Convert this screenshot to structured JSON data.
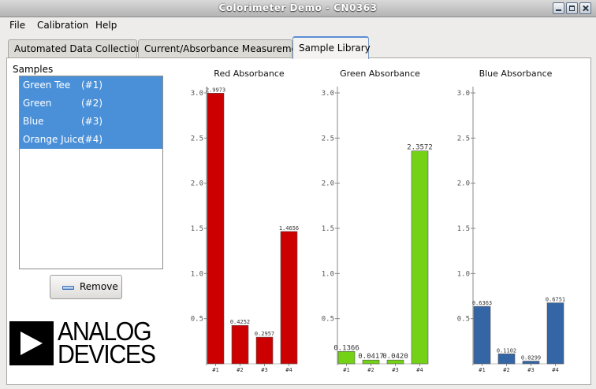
{
  "window": {
    "title": "Colorimeter Demo - CN0363"
  },
  "menu": {
    "items": [
      "File",
      "Calibration",
      "Help"
    ]
  },
  "tabs": [
    {
      "label": "Automated Data Collection",
      "active": false
    },
    {
      "label": "Current/Absorbance Measurement",
      "active": false
    },
    {
      "label": "Sample Library",
      "active": true
    }
  ],
  "samples": {
    "label": "Samples",
    "items": [
      {
        "name": "Green Tee",
        "id": "(#1)"
      },
      {
        "name": "Green",
        "id": "(#2)"
      },
      {
        "name": "Blue",
        "id": "(#3)"
      },
      {
        "name": "Orange Juice",
        "id": "(#4)"
      }
    ],
    "selection_color": "#4a90d9"
  },
  "remove_button": {
    "label": "Remove",
    "icon": "minus-icon"
  },
  "logo": {
    "line1": "ANALOG",
    "line2": "DEVICES"
  },
  "chart_data": [
    {
      "type": "bar",
      "title": "Red Absorbance",
      "categories": [
        "#1",
        "#2",
        "#3",
        "#4"
      ],
      "values": [
        2.9973,
        0.4252,
        0.2957,
        1.4656
      ],
      "value_labels": [
        "2.9973",
        "0.4252",
        "0.2957",
        "1.4656"
      ],
      "ylim": [
        0,
        3.0
      ],
      "yticks": [
        "3.0",
        "2.5",
        "2.0",
        "1.5",
        "1.0",
        "0.5"
      ],
      "color": "#cc0000",
      "label_size": "small"
    },
    {
      "type": "bar",
      "title": "Green Absorbance",
      "categories": [
        "#1",
        "#2",
        "#3",
        "#4"
      ],
      "values": [
        0.1366,
        0.0417,
        0.042,
        2.3572
      ],
      "value_labels": [
        "0.1366",
        "0.0417",
        "0.0420",
        "2.3572"
      ],
      "ylim": [
        0,
        3.0
      ],
      "yticks": [
        "3.0",
        "2.5",
        "2.0",
        "1.5",
        "1.0",
        "0.5"
      ],
      "color": "#73d216",
      "label_size": "big"
    },
    {
      "type": "bar",
      "title": "Blue Absorbance",
      "categories": [
        "#1",
        "#2",
        "#3",
        "#4"
      ],
      "values": [
        0.6363,
        0.1102,
        0.0299,
        0.6751
      ],
      "value_labels": [
        "0.6363",
        "0.1102",
        "0.0299",
        "0.6751"
      ],
      "ylim": [
        0,
        3.0
      ],
      "yticks": [
        "3.0",
        "2.5",
        "2.0",
        "1.5",
        "1.0",
        "0.5"
      ],
      "color": "#3465a4",
      "label_size": "small"
    }
  ]
}
